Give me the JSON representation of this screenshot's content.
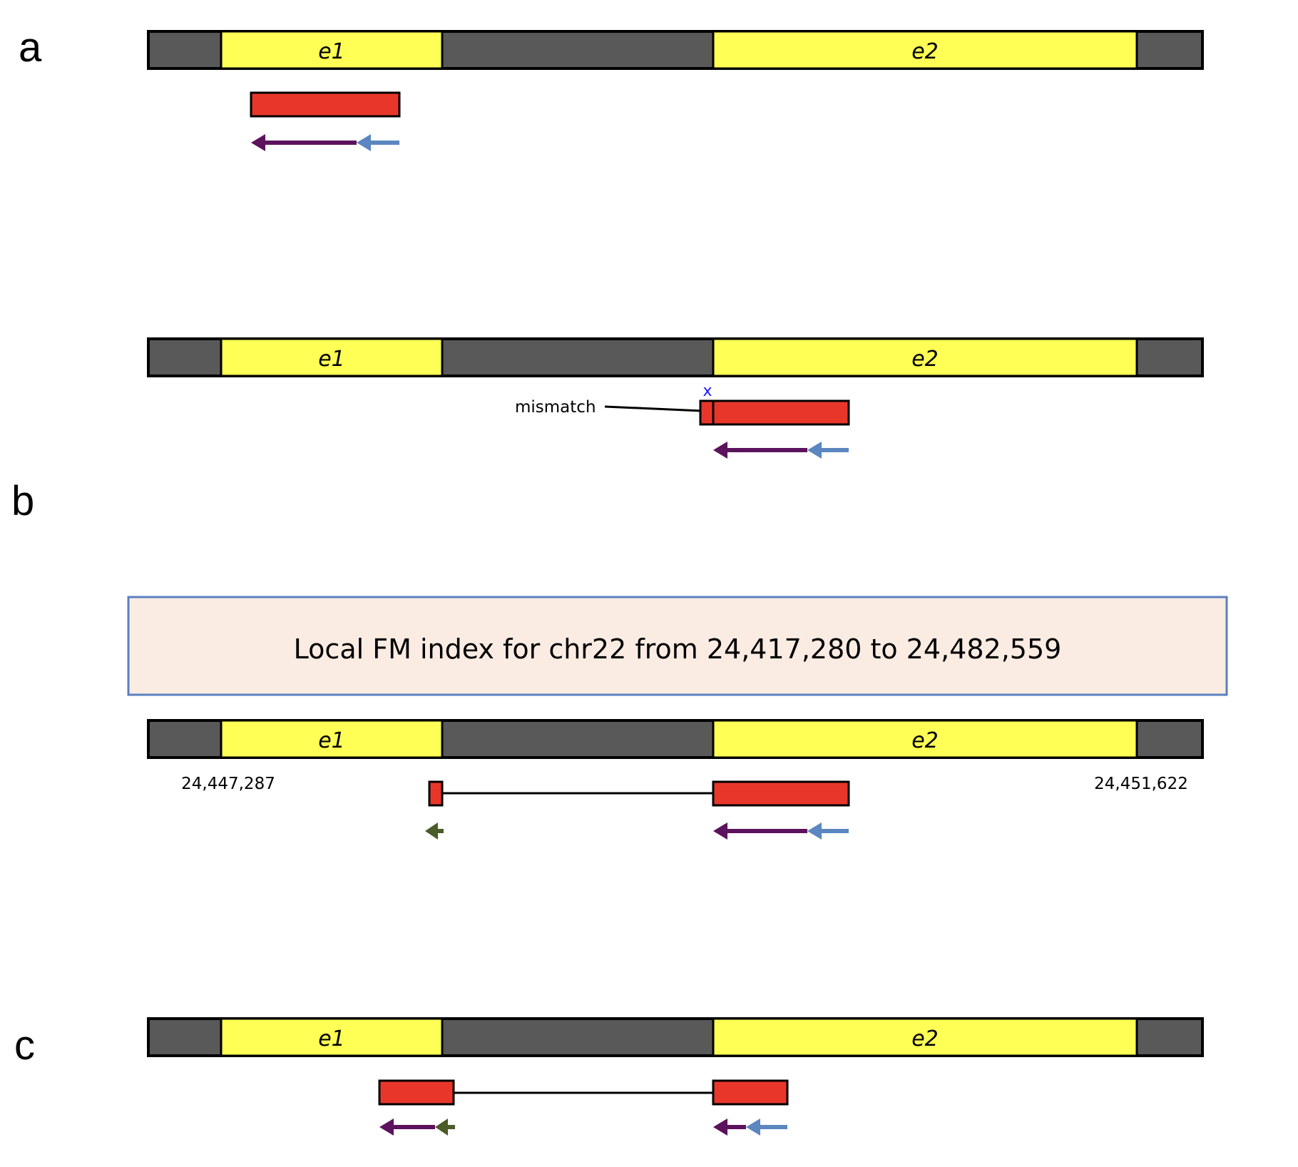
{
  "panels": {
    "a": "a",
    "b": "b",
    "c": "c"
  },
  "exons": {
    "e1": "e1",
    "e2": "e2"
  },
  "mismatch_label": "mismatch",
  "mismatch_mark": "x",
  "fm_index_text": "Local FM index for chr22 from 24,417,280 to 24,482,559",
  "coord_left": "24,447,287",
  "coord_right": "24,451,622",
  "colors": {
    "intron": "#595959",
    "exon": "#ffff55",
    "read": "#e8372a",
    "purple_arrow": "#5c125c",
    "blue_arrow": "#5b86c0",
    "green_arrow": "#4b5b2a",
    "index_fill": "#faece3",
    "index_border": "#5b7fbf",
    "mismatch_mark": "#1a1aff"
  }
}
